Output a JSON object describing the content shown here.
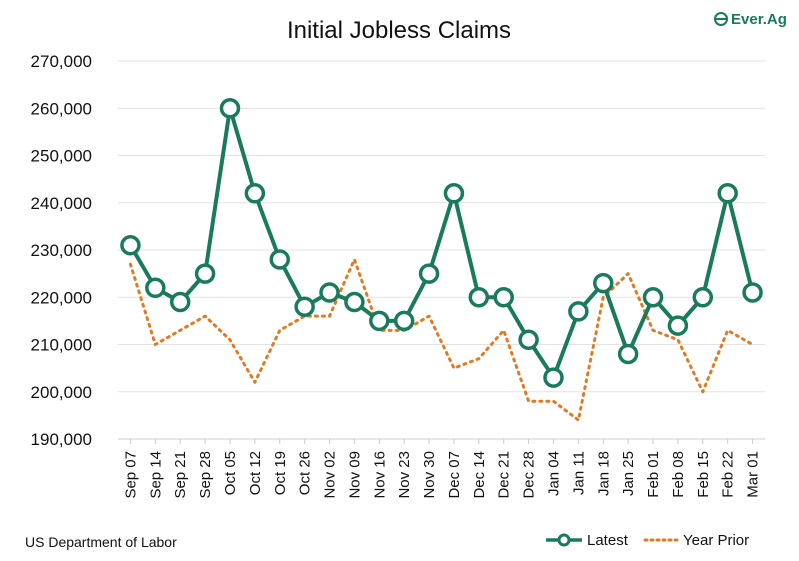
{
  "logo": {
    "text": "Ever.Ag"
  },
  "chart_data": {
    "type": "line",
    "title": "Initial Jobless Claims",
    "categories": [
      "Sep 07",
      "Sep 14",
      "Sep 21",
      "Sep 28",
      "Oct 05",
      "Oct 12",
      "Oct 19",
      "Oct 26",
      "Nov 02",
      "Nov 09",
      "Nov 16",
      "Nov 23",
      "Nov 30",
      "Dec 07",
      "Dec 14",
      "Dec 21",
      "Dec 28",
      "Jan 04",
      "Jan 11",
      "Jan 18",
      "Jan 25",
      "Feb 01",
      "Feb 08",
      "Feb 15",
      "Feb 22",
      "Mar 01"
    ],
    "series": [
      {
        "name": "Latest",
        "color": "#1a7a5c",
        "style": "solid-with-circle-markers",
        "values": [
          231000,
          222000,
          219000,
          225000,
          260000,
          242000,
          228000,
          218000,
          221000,
          219000,
          215000,
          215000,
          225000,
          242000,
          220000,
          220000,
          211000,
          203000,
          217000,
          223000,
          208000,
          220000,
          214000,
          220000,
          242000,
          221000
        ]
      },
      {
        "name": "Year Prior",
        "color": "#e07b24",
        "style": "dotted",
        "values": [
          227000,
          210000,
          213000,
          216000,
          211000,
          202000,
          213000,
          216000,
          216000,
          228000,
          213000,
          213000,
          216000,
          205000,
          207000,
          213000,
          198000,
          198000,
          194000,
          220000,
          225000,
          213000,
          211000,
          200000,
          213000,
          210000
        ]
      }
    ],
    "ylim": [
      190000,
      270000
    ],
    "yticks": [
      190000,
      200000,
      210000,
      220000,
      230000,
      240000,
      250000,
      260000,
      270000
    ],
    "ytick_labels": [
      "190,000",
      "200,000",
      "210,000",
      "220,000",
      "230,000",
      "240,000",
      "250,000",
      "260,000",
      "270,000"
    ],
    "grid": true,
    "legend": "bottom-right"
  },
  "source": "US Department of Labor"
}
